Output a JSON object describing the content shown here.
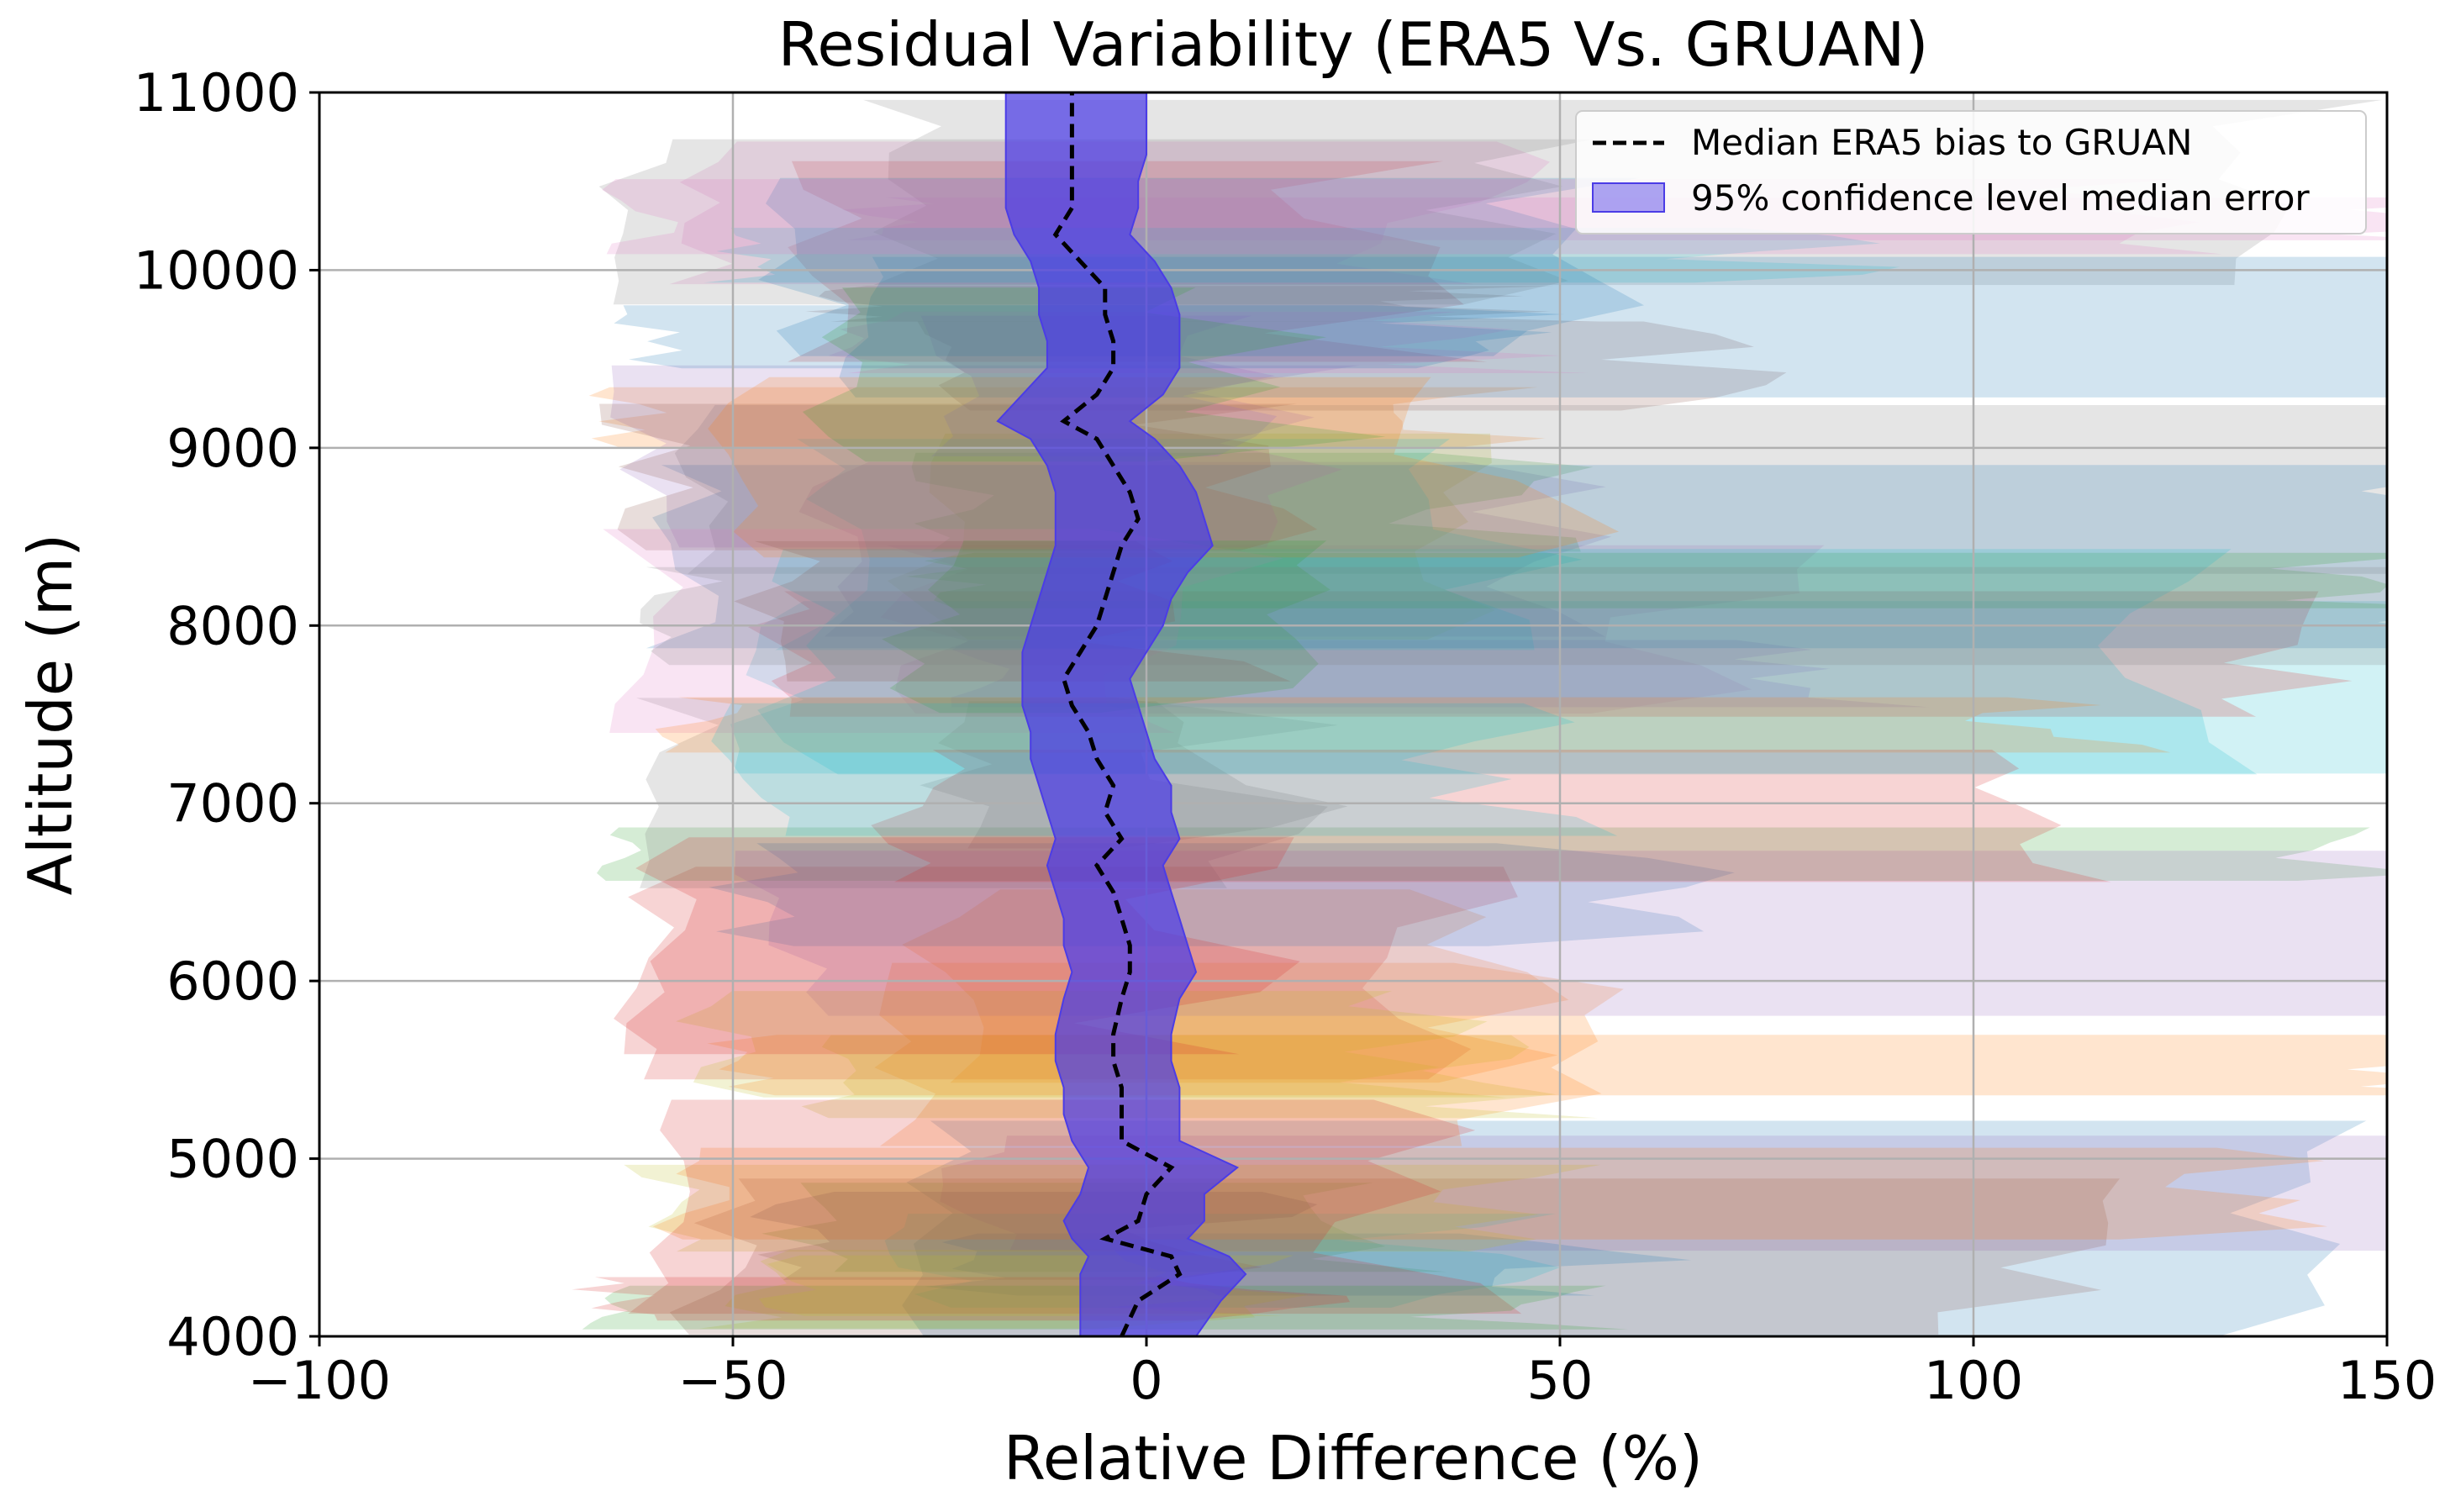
{
  "chart_data": {
    "type": "area",
    "title": "Residual Variability (ERA5 Vs. GRUAN)",
    "xlabel": "Relative Difference (%)",
    "ylabel": "Altitude (m)",
    "xlim": [
      -100,
      150
    ],
    "ylim": [
      4000,
      11000
    ],
    "xticks": [
      -100,
      -50,
      0,
      50,
      100,
      150
    ],
    "xtick_labels": [
      "−100",
      "−50",
      "0",
      "50",
      "100",
      "150"
    ],
    "yticks": [
      4000,
      5000,
      6000,
      7000,
      8000,
      9000,
      10000,
      11000
    ],
    "ytick_labels": [
      "4000",
      "5000",
      "6000",
      "7000",
      "8000",
      "9000",
      "10000",
      "11000"
    ],
    "grid": true,
    "legend": {
      "placement": "top-right",
      "entries": [
        {
          "label": "Median ERA5 bias to GRUAN",
          "style": "dashed-line",
          "color": "#000000"
        },
        {
          "label": "95% confidence level median error",
          "style": "patch",
          "color": "#4b3ce6"
        }
      ]
    },
    "median_bias": {
      "altitudes": [
        4000,
        4200,
        4350,
        4450,
        4550,
        4650,
        4800,
        4950,
        5100,
        5250,
        5400,
        5550,
        5700,
        5900,
        6050,
        6200,
        6350,
        6500,
        6650,
        6800,
        6950,
        7100,
        7250,
        7400,
        7550,
        7700,
        7850,
        8000,
        8150,
        8300,
        8450,
        8600,
        8750,
        8900,
        9050,
        9150,
        9300,
        9450,
        9600,
        9750,
        9900,
        10050,
        10200,
        10350,
        10500,
        10650,
        10800,
        11000
      ],
      "values": [
        -3,
        -1,
        4,
        3,
        -5,
        -1,
        0,
        3,
        -3,
        -3,
        -3,
        -4,
        -4,
        -3,
        -2,
        -2,
        -3,
        -4,
        -6,
        -3,
        -5,
        -4,
        -6,
        -7,
        -9,
        -10,
        -8,
        -6,
        -5,
        -4,
        -3,
        -1,
        -2,
        -4,
        -6,
        -10,
        -6,
        -4,
        -4,
        -5,
        -5,
        -8,
        -11,
        -9,
        -9,
        -9,
        -9,
        -9
      ],
      "ci_low": [
        -8,
        -8,
        -8,
        -7,
        -9,
        -10,
        -8,
        -7,
        -9,
        -10,
        -10,
        -11,
        -11,
        -10,
        -9,
        -10,
        -10,
        -11,
        -12,
        -11,
        -12,
        -13,
        -14,
        -14,
        -15,
        -15,
        -15,
        -14,
        -13,
        -12,
        -11,
        -11,
        -11,
        -12,
        -14,
        -18,
        -15,
        -12,
        -12,
        -13,
        -13,
        -14,
        -16,
        -17,
        -17,
        -17,
        -17,
        -17
      ],
      "ci_high": [
        6,
        9,
        12,
        10,
        5,
        7,
        7,
        11,
        4,
        4,
        4,
        3,
        3,
        4,
        6,
        5,
        4,
        3,
        2,
        4,
        3,
        3,
        1,
        0,
        -1,
        -2,
        0,
        2,
        3,
        5,
        8,
        7,
        6,
        4,
        1,
        -2,
        2,
        4,
        4,
        4,
        3,
        1,
        -2,
        -1,
        -1,
        0,
        0,
        0
      ]
    },
    "individual_profiles_note": "dozens of semi-transparent per-profile residual bands spanning roughly -65% to beyond +150%"
  }
}
